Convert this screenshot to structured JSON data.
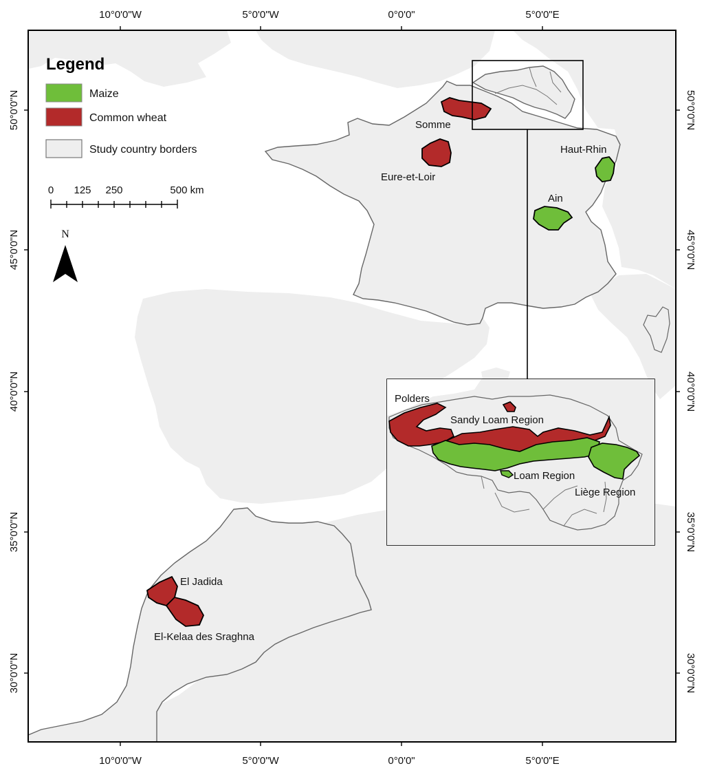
{
  "colors": {
    "maize": "#6fbe3a",
    "wheat": "#b32a2a",
    "land": "#eeeeee",
    "border": "#666666",
    "sea": "#ffffff"
  },
  "axes": {
    "top": [
      "10°0'0\"W",
      "5°0'0\"W",
      "0°0'0\"",
      "5°0'0\"E"
    ],
    "bottom": [
      "10°0'0\"W",
      "5°0'0\"W",
      "0°0'0\"",
      "5°0'0\"E"
    ],
    "left": [
      "50°0'0\"N",
      "45°0'0\"N",
      "40°0'0\"N",
      "35°0'0\"N",
      "30°0'0\"N"
    ],
    "right": [
      "50°0'0\"N",
      "45°0'0\"N",
      "40°0'0\"N",
      "35°0'0\"N",
      "30°0'0\"N"
    ]
  },
  "legend": {
    "title": "Legend",
    "items": [
      {
        "label": "Maize",
        "color": "#6fbe3a"
      },
      {
        "label": "Common wheat",
        "color": "#b32a2a"
      },
      {
        "label": "Study country borders",
        "color": "#eeeeee"
      }
    ]
  },
  "scale": {
    "labels": [
      "0",
      "125",
      "250",
      "500 km"
    ]
  },
  "north": "N",
  "regions": {
    "somme": "Somme",
    "eure_et_loir": "Eure-et-Loir",
    "haut_rhin": "Haut-Rhin",
    "ain": "Ain",
    "el_jadida": "El Jadida",
    "el_kelaa": "El-Kelaa des Sraghna",
    "polders": "Polders",
    "sandy_loam": "Sandy Loam Region",
    "loam": "Loam Region",
    "liege": "Liège Region"
  }
}
